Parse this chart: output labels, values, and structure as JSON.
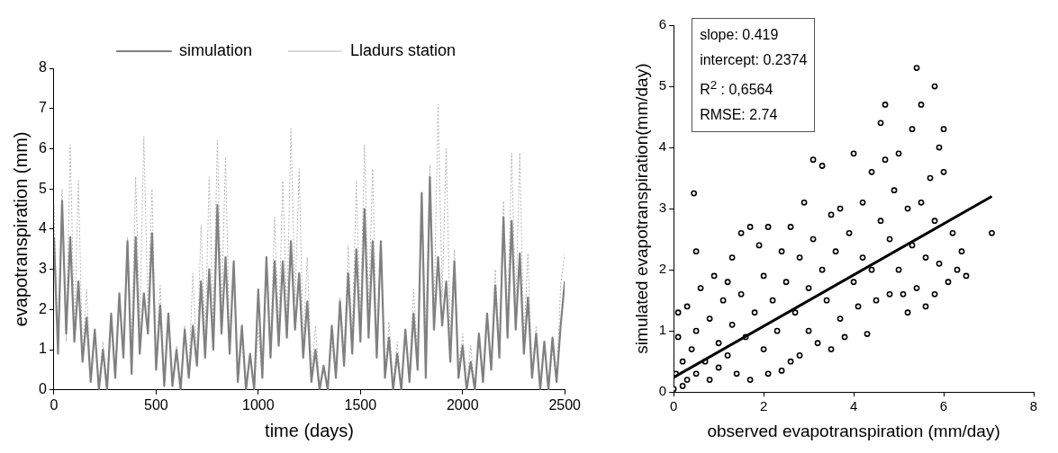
{
  "chart_data": [
    {
      "type": "line",
      "xlabel": "time (days)",
      "ylabel": "evapotranspiration (mm)",
      "xlim": [
        0,
        2500
      ],
      "xticks": [
        0,
        500,
        1000,
        1500,
        2000,
        2500
      ],
      "ylim": [
        0,
        8
      ],
      "yticks": [
        0,
        1,
        2,
        3,
        4,
        5,
        6,
        7,
        8
      ],
      "grid": false,
      "legend": "top",
      "marker": "none",
      "x": [
        0,
        20,
        40,
        60,
        80,
        100,
        120,
        140,
        160,
        180,
        200,
        220,
        240,
        260,
        280,
        300,
        320,
        340,
        360,
        380,
        400,
        420,
        440,
        460,
        480,
        500,
        520,
        540,
        560,
        580,
        600,
        620,
        640,
        660,
        680,
        700,
        720,
        740,
        760,
        780,
        800,
        820,
        840,
        860,
        880,
        900,
        920,
        940,
        960,
        980,
        1000,
        1020,
        1040,
        1060,
        1080,
        1100,
        1120,
        1140,
        1160,
        1180,
        1200,
        1220,
        1240,
        1260,
        1280,
        1300,
        1320,
        1340,
        1360,
        1380,
        1400,
        1420,
        1440,
        1460,
        1480,
        1500,
        1520,
        1540,
        1560,
        1580,
        1600,
        1620,
        1640,
        1660,
        1680,
        1700,
        1720,
        1740,
        1760,
        1780,
        1800,
        1820,
        1840,
        1860,
        1880,
        1900,
        1920,
        1940,
        1960,
        1980,
        2000,
        2020,
        2040,
        2060,
        2080,
        2100,
        2120,
        2140,
        2160,
        2180,
        2200,
        2220,
        2240,
        2260,
        2280,
        2300,
        2320,
        2340,
        2360,
        2380,
        2400,
        2420,
        2440,
        2460,
        2480,
        2500
      ],
      "series": [
        {
          "name": "simulation",
          "color": "#808080",
          "line_style": "solid",
          "values": [
            3.8,
            0.9,
            4.7,
            1.4,
            3.8,
            1.2,
            2.7,
            0.7,
            1.8,
            0.2,
            1.5,
            0.0,
            1.0,
            0.0,
            1.9,
            0.3,
            2.4,
            0.8,
            3.7,
            0.4,
            3.8,
            0.9,
            2.4,
            1.4,
            3.9,
            0.5,
            2.1,
            0.1,
            1.9,
            0.1,
            1.0,
            0.0,
            1.5,
            0.3,
            1.6,
            0.6,
            2.7,
            0.8,
            3.0,
            1.0,
            4.6,
            1.4,
            3.3,
            0.9,
            3.2,
            0.2,
            1.6,
            0.0,
            0.9,
            0.0,
            2.5,
            0.3,
            3.3,
            0.8,
            3.2,
            1.1,
            3.2,
            1.3,
            3.7,
            1.5,
            2.9,
            0.8,
            2.2,
            0.2,
            1.0,
            0.0,
            0.6,
            0.0,
            1.6,
            0.3,
            2.2,
            0.6,
            2.9,
            0.9,
            3.5,
            1.2,
            4.5,
            1.3,
            3.7,
            0.8,
            3.7,
            0.3,
            1.3,
            0.0,
            0.9,
            0.0,
            1.5,
            0.2,
            1.9,
            0.5,
            4.9,
            0.3,
            5.3,
            1.5,
            3.3,
            1.6,
            2.7,
            0.7,
            3.2,
            0.3,
            1.1,
            0.0,
            0.7,
            0.0,
            1.4,
            0.2,
            1.9,
            0.5,
            2.6,
            0.8,
            4.3,
            1.3,
            4.2,
            1.5,
            3.4,
            0.9,
            2.3,
            0.3,
            1.4,
            0.0,
            1.2,
            0.0,
            1.3,
            0.2,
            1.6,
            2.7
          ]
        },
        {
          "name": "Lladurs station",
          "color": "#b4b4b4",
          "line_style": "dotted",
          "values": [
            4.6,
            1.0,
            5.0,
            1.2,
            6.1,
            1.5,
            5.2,
            0.8,
            2.5,
            0.3,
            1.5,
            0.1,
            1.2,
            0.0,
            1.6,
            0.3,
            2.4,
            0.8,
            3.8,
            1.0,
            5.3,
            1.5,
            6.3,
            2.0,
            5.0,
            0.6,
            2.6,
            0.2,
            1.9,
            0.1,
            1.1,
            0.0,
            1.6,
            0.4,
            2.9,
            0.7,
            4.1,
            1.2,
            5.3,
            1.6,
            6.2,
            2.0,
            5.8,
            1.0,
            3.0,
            0.3,
            1.2,
            0.1,
            0.9,
            0.0,
            1.5,
            0.3,
            3.3,
            1.0,
            4.3,
            1.5,
            5.2,
            1.8,
            6.5,
            2.2,
            5.5,
            1.2,
            3.3,
            0.4,
            1.6,
            0.1,
            0.6,
            0.0,
            1.2,
            0.4,
            2.3,
            0.8,
            3.6,
            1.2,
            5.2,
            1.7,
            6.1,
            2.1,
            5.5,
            1.0,
            3.7,
            0.4,
            1.7,
            0.1,
            1.2,
            0.0,
            1.4,
            0.3,
            2.5,
            0.8,
            4.9,
            1.3,
            5.6,
            1.8,
            7.1,
            2.3,
            6.0,
            1.3,
            3.5,
            0.5,
            1.4,
            0.1,
            1.1,
            0.0,
            1.4,
            0.3,
            1.9,
            0.6,
            3.0,
            1.0,
            4.7,
            1.6,
            5.9,
            2.0,
            5.9,
            1.2,
            3.4,
            0.4,
            1.6,
            0.1,
            1.2,
            0.0,
            1.0,
            0.2,
            2.6,
            3.4
          ]
        }
      ]
    },
    {
      "type": "scatter",
      "xlabel": "observed evapotranspiration (mm/day)",
      "ylabel": "simulated evapotranspiration(mm/day)",
      "xlim": [
        0,
        8
      ],
      "xticks": [
        0,
        2,
        4,
        6,
        8
      ],
      "ylim": [
        0,
        6
      ],
      "yticks": [
        0,
        1,
        2,
        3,
        4,
        5,
        6
      ],
      "grid": false,
      "legend": false,
      "marker": "circle",
      "annotations": [
        "slope: 0.419",
        "intercept: 0.2374",
        "R$^{2}$ : 0,6564",
        "RMSE: 2.74"
      ],
      "series": [
        {
          "color": "#000000",
          "x": [
            0,
            0.05,
            0.1,
            0.1,
            0.2,
            0.2,
            0.3,
            0.3,
            0.4,
            0.45,
            0.5,
            0.5,
            0.5,
            0.6,
            0.7,
            0.8,
            0.8,
            0.9,
            1.0,
            1.0,
            1.1,
            1.2,
            1.2,
            1.3,
            1.3,
            1.4,
            1.5,
            1.5,
            1.6,
            1.7,
            1.7,
            1.8,
            1.9,
            2.0,
            2.0,
            2.1,
            2.1,
            2.2,
            2.3,
            2.4,
            2.4,
            2.5,
            2.6,
            2.6,
            2.7,
            2.8,
            2.8,
            2.9,
            3.0,
            3.0,
            3.1,
            3.1,
            3.2,
            3.3,
            3.3,
            3.4,
            3.5,
            3.5,
            3.6,
            3.7,
            3.7,
            3.8,
            3.9,
            4.0,
            4.0,
            4.1,
            4.2,
            4.2,
            4.3,
            4.4,
            4.4,
            4.5,
            4.6,
            4.6,
            4.7,
            4.7,
            4.8,
            4.8,
            4.9,
            5.0,
            5.0,
            5.1,
            5.2,
            5.2,
            5.3,
            5.3,
            5.4,
            5.4,
            5.5,
            5.5,
            5.6,
            5.6,
            5.7,
            5.8,
            5.8,
            5.8,
            5.9,
            5.9,
            6.0,
            6.0,
            6.1,
            6.2,
            6.3,
            6.4,
            6.5,
            7.07
          ],
          "values": [
            0.05,
            0.3,
            0.9,
            1.3,
            0.1,
            0.5,
            1.4,
            0.2,
            0.7,
            3.25,
            2.3,
            1.0,
            0.3,
            1.7,
            0.5,
            1.2,
            0.2,
            1.9,
            0.8,
            0.4,
            1.5,
            1.8,
            0.6,
            2.2,
            1.1,
            0.3,
            2.6,
            1.6,
            0.9,
            0.2,
            2.7,
            1.3,
            2.4,
            1.9,
            0.7,
            2.7,
            0.3,
            1.5,
            1.0,
            2.3,
            0.35,
            1.8,
            2.7,
            0.5,
            1.3,
            2.2,
            0.6,
            3.1,
            1.7,
            1.0,
            3.8,
            2.5,
            0.8,
            3.7,
            2.0,
            1.5,
            2.9,
            0.7,
            2.3,
            3.0,
            1.2,
            0.9,
            2.6,
            3.9,
            1.8,
            1.4,
            3.1,
            2.2,
            0.95,
            3.6,
            2.0,
            1.5,
            4.4,
            2.8,
            4.7,
            3.8,
            1.6,
            2.5,
            3.3,
            3.9,
            2.0,
            1.6,
            3.0,
            1.3,
            4.3,
            2.4,
            5.3,
            1.7,
            4.7,
            3.1,
            1.4,
            2.2,
            3.5,
            5.0,
            1.6,
            2.8,
            4.0,
            2.1,
            4.3,
            3.6,
            1.8,
            2.6,
            2.0,
            2.3,
            1.9,
            2.6
          ]
        },
        {
          "type": "line",
          "marker": "none",
          "line_style": "solid",
          "color": "#000000",
          "x": [
            0,
            7.07
          ],
          "values": [
            0.24,
            3.2
          ]
        }
      ]
    }
  ]
}
